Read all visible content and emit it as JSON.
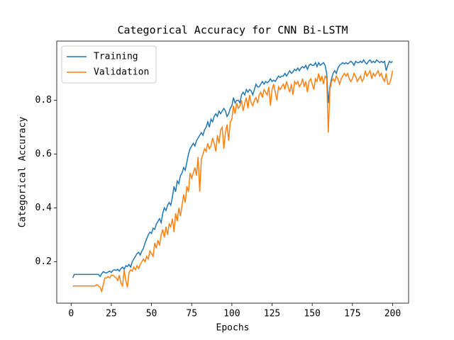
{
  "chart_data": {
    "type": "line",
    "title": "Categorical Accuracy for CNN Bi-LSTM",
    "xlabel": "Epochs",
    "ylabel": "Categorical Accuracy",
    "x": [
      1,
      2,
      3,
      4,
      5,
      6,
      7,
      8,
      9,
      10,
      11,
      12,
      13,
      14,
      15,
      16,
      17,
      18,
      19,
      20,
      21,
      22,
      23,
      24,
      25,
      26,
      27,
      28,
      29,
      30,
      31,
      32,
      33,
      34,
      35,
      36,
      37,
      38,
      39,
      40,
      41,
      42,
      43,
      44,
      45,
      46,
      47,
      48,
      49,
      50,
      51,
      52,
      53,
      54,
      55,
      56,
      57,
      58,
      59,
      60,
      61,
      62,
      63,
      64,
      65,
      66,
      67,
      68,
      69,
      70,
      71,
      72,
      73,
      74,
      75,
      76,
      77,
      78,
      79,
      80,
      81,
      82,
      83,
      84,
      85,
      86,
      87,
      88,
      89,
      90,
      91,
      92,
      93,
      94,
      95,
      96,
      97,
      98,
      99,
      100,
      101,
      102,
      103,
      104,
      105,
      106,
      107,
      108,
      109,
      110,
      111,
      112,
      113,
      114,
      115,
      116,
      117,
      118,
      119,
      120,
      121,
      122,
      123,
      124,
      125,
      126,
      127,
      128,
      129,
      130,
      131,
      132,
      133,
      134,
      135,
      136,
      137,
      138,
      139,
      140,
      141,
      142,
      143,
      144,
      145,
      146,
      147,
      148,
      149,
      150,
      151,
      152,
      153,
      154,
      155,
      156,
      157,
      158,
      159,
      160,
      161,
      162,
      163,
      164,
      165,
      166,
      167,
      168,
      169,
      170,
      171,
      172,
      173,
      174,
      175,
      176,
      177,
      178,
      179,
      180,
      181,
      182,
      183,
      184,
      185,
      186,
      187,
      188,
      189,
      190,
      191,
      192,
      193,
      194,
      195,
      196,
      197,
      198,
      199,
      200
    ],
    "series": [
      {
        "name": "Training",
        "color": "#1f77b4",
        "values": [
          0.14,
          0.153,
          0.153,
          0.153,
          0.153,
          0.153,
          0.153,
          0.153,
          0.153,
          0.153,
          0.153,
          0.153,
          0.153,
          0.153,
          0.153,
          0.153,
          0.153,
          0.145,
          0.155,
          0.163,
          0.16,
          0.158,
          0.162,
          0.165,
          0.16,
          0.168,
          0.17,
          0.168,
          0.172,
          0.165,
          0.175,
          0.18,
          0.172,
          0.185,
          0.182,
          0.19,
          0.18,
          0.2,
          0.21,
          0.22,
          0.23,
          0.235,
          0.225,
          0.24,
          0.25,
          0.27,
          0.285,
          0.3,
          0.31,
          0.305,
          0.325,
          0.32,
          0.34,
          0.35,
          0.36,
          0.345,
          0.38,
          0.4,
          0.39,
          0.41,
          0.42,
          0.41,
          0.44,
          0.48,
          0.46,
          0.5,
          0.49,
          0.52,
          0.53,
          0.55,
          0.54,
          0.57,
          0.6,
          0.62,
          0.63,
          0.64,
          0.63,
          0.65,
          0.66,
          0.67,
          0.68,
          0.67,
          0.69,
          0.7,
          0.72,
          0.7,
          0.73,
          0.72,
          0.74,
          0.75,
          0.74,
          0.76,
          0.75,
          0.76,
          0.77,
          0.76,
          0.74,
          0.75,
          0.77,
          0.78,
          0.81,
          0.79,
          0.8,
          0.8,
          0.79,
          0.82,
          0.83,
          0.82,
          0.84,
          0.83,
          0.84,
          0.835,
          0.82,
          0.84,
          0.86,
          0.85,
          0.85,
          0.86,
          0.87,
          0.86,
          0.87,
          0.865,
          0.87,
          0.88,
          0.87,
          0.875,
          0.87,
          0.88,
          0.89,
          0.885,
          0.89,
          0.89,
          0.9,
          0.89,
          0.9,
          0.91,
          0.9,
          0.905,
          0.915,
          0.91,
          0.92,
          0.91,
          0.92,
          0.925,
          0.92,
          0.93,
          0.915,
          0.93,
          0.935,
          0.93,
          0.93,
          0.94,
          0.925,
          0.94,
          0.93,
          0.935,
          0.94,
          0.93,
          0.9,
          0.79,
          0.85,
          0.88,
          0.9,
          0.91,
          0.9,
          0.92,
          0.93,
          0.935,
          0.94,
          0.935,
          0.94,
          0.935,
          0.94,
          0.945,
          0.94,
          0.93,
          0.945,
          0.94,
          0.94,
          0.945,
          0.94,
          0.95,
          0.94,
          0.935,
          0.945,
          0.95,
          0.94,
          0.945,
          0.94,
          0.95,
          0.945,
          0.94,
          0.945,
          0.94,
          0.945,
          0.91,
          0.93,
          0.945,
          0.94,
          0.945
        ]
      },
      {
        "name": "Validation",
        "color": "#ff7f0e",
        "values": [
          0.11,
          0.11,
          0.11,
          0.11,
          0.11,
          0.11,
          0.11,
          0.11,
          0.11,
          0.11,
          0.11,
          0.11,
          0.11,
          0.11,
          0.11,
          0.115,
          0.11,
          0.105,
          0.09,
          0.115,
          0.14,
          0.14,
          0.145,
          0.14,
          0.15,
          0.15,
          0.145,
          0.14,
          0.13,
          0.15,
          0.12,
          0.11,
          0.17,
          0.13,
          0.105,
          0.16,
          0.17,
          0.165,
          0.18,
          0.17,
          0.185,
          0.175,
          0.19,
          0.2,
          0.21,
          0.2,
          0.22,
          0.21,
          0.24,
          0.23,
          0.22,
          0.27,
          0.25,
          0.28,
          0.26,
          0.3,
          0.32,
          0.29,
          0.33,
          0.3,
          0.34,
          0.33,
          0.36,
          0.31,
          0.38,
          0.35,
          0.4,
          0.37,
          0.41,
          0.45,
          0.42,
          0.48,
          0.46,
          0.53,
          0.51,
          0.53,
          0.55,
          0.52,
          0.59,
          0.46,
          0.58,
          0.6,
          0.62,
          0.61,
          0.64,
          0.62,
          0.63,
          0.66,
          0.64,
          0.61,
          0.67,
          0.64,
          0.69,
          0.7,
          0.62,
          0.68,
          0.71,
          0.65,
          0.72,
          0.73,
          0.78,
          0.75,
          0.79,
          0.77,
          0.78,
          0.8,
          0.76,
          0.79,
          0.81,
          0.77,
          0.82,
          0.79,
          0.78,
          0.8,
          0.81,
          0.79,
          0.82,
          0.83,
          0.81,
          0.84,
          0.83,
          0.82,
          0.85,
          0.78,
          0.84,
          0.86,
          0.83,
          0.8,
          0.85,
          0.84,
          0.85,
          0.86,
          0.84,
          0.87,
          0.85,
          0.83,
          0.86,
          0.82,
          0.87,
          0.86,
          0.87,
          0.85,
          0.86,
          0.88,
          0.85,
          0.87,
          0.83,
          0.87,
          0.88,
          0.86,
          0.84,
          0.88,
          0.87,
          0.9,
          0.87,
          0.89,
          0.86,
          0.89,
          0.88,
          0.68,
          0.84,
          0.87,
          0.88,
          0.87,
          0.89,
          0.88,
          0.86,
          0.88,
          0.89,
          0.9,
          0.89,
          0.9,
          0.88,
          0.87,
          0.88,
          0.9,
          0.89,
          0.87,
          0.88,
          0.89,
          0.87,
          0.88,
          0.91,
          0.89,
          0.9,
          0.91,
          0.88,
          0.9,
          0.89,
          0.9,
          0.91,
          0.89,
          0.9,
          0.88,
          0.87,
          0.9,
          0.86,
          0.86,
          0.88,
          0.91
        ]
      }
    ],
    "xlim": [
      -8.95,
      209.95
    ],
    "xticks": [
      0,
      25,
      50,
      75,
      100,
      125,
      150,
      175,
      200
    ],
    "ylim": [
      0.046,
      1.02
    ],
    "yticks": [
      0.2,
      0.4,
      0.6,
      0.8
    ],
    "grid": false,
    "legend": "upper left"
  }
}
